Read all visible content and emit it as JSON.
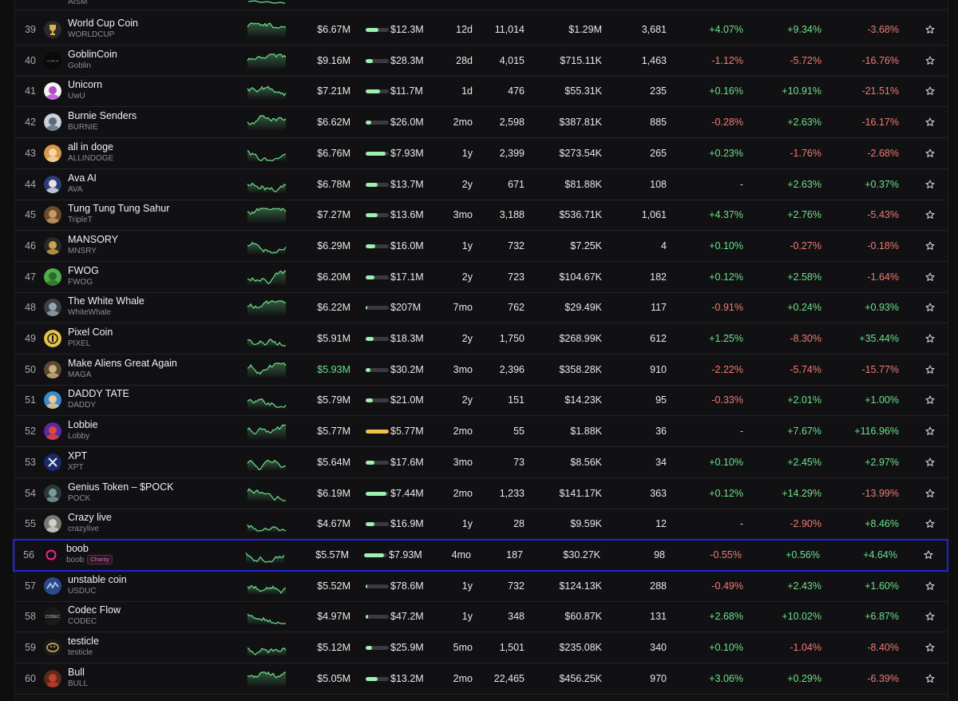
{
  "top_partial": {
    "ticker": "AISM"
  },
  "colors": {
    "positive": "#6de08a",
    "negative": "#f07a72",
    "selection": "#2323e0",
    "liquidity_bar": "#9ef0b0"
  },
  "rows": [
    {
      "rank": "39",
      "name": "World Cup Coin",
      "ticker": "WORLDCUP",
      "mcap": "$6.67M",
      "liq_pct": 0.55,
      "liq": "$12.3M",
      "age": "12d",
      "holders": "11,014",
      "volume": "$1.29M",
      "txns": "3,681",
      "ch1h": "+4.07%",
      "ch6h": "+9.34%",
      "ch24h": "-3.68%",
      "avatar_icon": "trophy-icon",
      "avatar_bg": "#2b2b2b",
      "avatar_fg": "#d9b24a"
    },
    {
      "rank": "40",
      "name": "GoblinCoin",
      "ticker": "Goblin",
      "mcap": "$9.16M",
      "liq_pct": 0.3,
      "liq": "$28.3M",
      "age": "28d",
      "holders": "4,015",
      "volume": "$715.11K",
      "txns": "1,463",
      "ch1h": "-1.12%",
      "ch6h": "-5.72%",
      "ch24h": "-16.76%",
      "avatar_icon": "goblin-logo-icon",
      "avatar_bg": "#0a0a0a",
      "avatar_fg": "#888"
    },
    {
      "rank": "41",
      "name": "Unicorn",
      "ticker": "UwU",
      "mcap": "$7.21M",
      "liq_pct": 0.62,
      "liq": "$11.7M",
      "age": "1d",
      "holders": "476",
      "volume": "$55.31K",
      "txns": "235",
      "ch1h": "+0.16%",
      "ch6h": "+10.91%",
      "ch24h": "-21.51%",
      "avatar_icon": "unicorn-icon",
      "avatar_bg": "#f3f3f3",
      "avatar_fg": "#b04ac8"
    },
    {
      "rank": "42",
      "name": "Burnie Senders",
      "ticker": "BURNIE",
      "mcap": "$6.62M",
      "liq_pct": 0.25,
      "liq": "$26.0M",
      "age": "2mo",
      "holders": "2,598",
      "volume": "$387.81K",
      "txns": "885",
      "ch1h": "-0.28%",
      "ch6h": "+2.63%",
      "ch24h": "-16.17%",
      "avatar_icon": "portrait-icon",
      "avatar_bg": "#c9d2dc",
      "avatar_fg": "#5a6a7a"
    },
    {
      "rank": "43",
      "name": "all in doge",
      "ticker": "ALLINDOGE",
      "mcap": "$6.76M",
      "liq_pct": 0.85,
      "liq": "$7.93M",
      "age": "1y",
      "holders": "2,399",
      "volume": "$273.54K",
      "txns": "265",
      "ch1h": "+0.23%",
      "ch6h": "-1.76%",
      "ch24h": "-2.68%",
      "avatar_icon": "doge-icon",
      "avatar_bg": "#d79a4a",
      "avatar_fg": "#f6d7a2"
    },
    {
      "rank": "44",
      "name": "Ava AI",
      "ticker": "AVA",
      "mcap": "$6.78M",
      "liq_pct": 0.5,
      "liq": "$13.7M",
      "age": "2y",
      "holders": "671",
      "volume": "$81.88K",
      "txns": "108",
      "ch1h": "-",
      "ch6h": "+2.63%",
      "ch24h": "+0.37%",
      "avatar_icon": "flag-icon",
      "avatar_bg": "#2c3d7a",
      "avatar_fg": "#e5e5e5"
    },
    {
      "rank": "45",
      "name": "Tung Tung Tung Sahur",
      "ticker": "TripleT",
      "mcap": "$7.27M",
      "liq_pct": 0.5,
      "liq": "$13.6M",
      "age": "3mo",
      "holders": "3,188",
      "volume": "$536.71K",
      "txns": "1,061",
      "ch1h": "+4.37%",
      "ch6h": "+2.76%",
      "ch24h": "-5.43%",
      "avatar_icon": "wood-figure-icon",
      "avatar_bg": "#6b4a2a",
      "avatar_fg": "#c89868"
    },
    {
      "rank": "46",
      "name": "MANSORY",
      "ticker": "MNSRY",
      "mcap": "$6.29M",
      "liq_pct": 0.42,
      "liq": "$16.0M",
      "age": "1y",
      "holders": "732",
      "volume": "$7.25K",
      "txns": "4",
      "ch1h": "+0.10%",
      "ch6h": "-0.27%",
      "ch24h": "-0.18%",
      "avatar_icon": "emblem-icon",
      "avatar_bg": "#2a2a2a",
      "avatar_fg": "#c9a44a"
    },
    {
      "rank": "47",
      "name": "FWOG",
      "ticker": "FWOG",
      "mcap": "$6.20M",
      "liq_pct": 0.38,
      "liq": "$17.1M",
      "age": "2y",
      "holders": "723",
      "volume": "$104.67K",
      "txns": "182",
      "ch1h": "+0.12%",
      "ch6h": "+2.58%",
      "ch24h": "-1.64%",
      "avatar_icon": "frog-icon",
      "avatar_bg": "#4fae4a",
      "avatar_fg": "#2a6a2a"
    },
    {
      "rank": "48",
      "name": "The White Whale",
      "ticker": "WhiteWhale",
      "mcap": "$6.22M",
      "liq_pct": 0.04,
      "liq": "$207M",
      "age": "7mo",
      "holders": "762",
      "volume": "$29.49K",
      "txns": "117",
      "ch1h": "-0.91%",
      "ch6h": "+0.24%",
      "ch24h": "+0.93%",
      "avatar_icon": "whale-icon",
      "avatar_bg": "#3a4048",
      "avatar_fg": "#9aa4b0"
    },
    {
      "rank": "49",
      "name": "Pixel Coin",
      "ticker": "PIXEL",
      "mcap": "$5.91M",
      "liq_pct": 0.36,
      "liq": "$18.3M",
      "age": "2y",
      "holders": "1,750",
      "volume": "$268.99K",
      "txns": "612",
      "ch1h": "+1.25%",
      "ch6h": "-8.30%",
      "ch24h": "+35.44%",
      "avatar_icon": "coin-icon",
      "avatar_bg": "#e7c24a",
      "avatar_fg": "#1a1a1a"
    },
    {
      "rank": "50",
      "name": "Make Aliens Great Again",
      "ticker": "MAGA",
      "mcap": "$5.93M",
      "mcap_green": true,
      "liq_pct": 0.22,
      "liq": "$30.2M",
      "age": "3mo",
      "holders": "2,396",
      "volume": "$358.28K",
      "txns": "910",
      "ch1h": "-2.22%",
      "ch6h": "-5.74%",
      "ch24h": "-15.77%",
      "avatar_icon": "alien-icon",
      "avatar_bg": "#5a4a32",
      "avatar_fg": "#c8b080"
    },
    {
      "rank": "51",
      "name": "DADDY TATE",
      "ticker": "DADDY",
      "mcap": "$5.79M",
      "liq_pct": 0.32,
      "liq": "$21.0M",
      "age": "2y",
      "holders": "151",
      "volume": "$14.23K",
      "txns": "95",
      "ch1h": "-0.33%",
      "ch6h": "+2.01%",
      "ch24h": "+1.00%",
      "avatar_icon": "portrait-icon",
      "avatar_bg": "#3a8ad0",
      "avatar_fg": "#f0c890"
    },
    {
      "rank": "52",
      "name": "Lobbie",
      "ticker": "Lobby",
      "mcap": "$5.77M",
      "liq_pct": 1.0,
      "liq_gold": true,
      "liq": "$5.77M",
      "age": "2mo",
      "holders": "55",
      "volume": "$1.88K",
      "txns": "36",
      "ch1h": "-",
      "ch6h": "+7.67%",
      "ch24h": "+116.96%",
      "avatar_icon": "lobster-icon",
      "avatar_bg": "#5a2aa0",
      "avatar_fg": "#e0483a"
    },
    {
      "rank": "53",
      "name": "XPT",
      "ticker": "XPT",
      "mcap": "$5.64M",
      "liq_pct": 0.38,
      "liq": "$17.6M",
      "age": "3mo",
      "holders": "73",
      "volume": "$8.56K",
      "txns": "34",
      "ch1h": "+0.10%",
      "ch6h": "+2.45%",
      "ch24h": "+2.97%",
      "avatar_icon": "x-logo-icon",
      "avatar_bg": "#1a2a6a",
      "avatar_fg": "#e8e8e8"
    },
    {
      "rank": "54",
      "name": "Genius Token – $POCK",
      "ticker": "POCK",
      "mcap": "$6.19M",
      "liq_pct": 0.88,
      "liq": "$7.44M",
      "age": "2mo",
      "holders": "1,233",
      "volume": "$141.17K",
      "txns": "363",
      "ch1h": "+0.12%",
      "ch6h": "+14.29%",
      "ch24h": "-13.99%",
      "avatar_icon": "globe-icon",
      "avatar_bg": "#2a3a3a",
      "avatar_fg": "#7a9a9a"
    },
    {
      "rank": "55",
      "name": "Crazy live",
      "ticker": "crazylive",
      "mcap": "$4.67M",
      "liq_pct": 0.38,
      "liq": "$16.9M",
      "age": "1y",
      "holders": "28",
      "volume": "$9.59K",
      "txns": "12",
      "ch1h": "-",
      "ch6h": "-2.90%",
      "ch24h": "+8.46%",
      "avatar_icon": "raccoon-icon",
      "avatar_bg": "#7a7a72",
      "avatar_fg": "#d0d0c8"
    },
    {
      "rank": "56",
      "name": "boob",
      "ticker": "boob",
      "badge": "Charity",
      "selected": true,
      "mcap": "$5.57M",
      "liq_pct": 0.85,
      "liq": "$7.93M",
      "age": "4mo",
      "holders": "187",
      "volume": "$30.27K",
      "txns": "98",
      "ch1h": "-0.55%",
      "ch6h": "+0.56%",
      "ch24h": "+4.64%",
      "avatar_icon": "ring-icon",
      "avatar_bg": "#1a0a14",
      "avatar_fg": "#e0308a"
    },
    {
      "rank": "57",
      "name": "unstable coin",
      "ticker": "USDUC",
      "mcap": "$5.52M",
      "liq_pct": 0.08,
      "liq": "$78.6M",
      "age": "1y",
      "holders": "732",
      "volume": "$124.13K",
      "txns": "288",
      "ch1h": "-0.49%",
      "ch6h": "+2.43%",
      "ch24h": "+1.60%",
      "avatar_icon": "wave-icon",
      "avatar_bg": "#2a4a8a",
      "avatar_fg": "#bcd0f0"
    },
    {
      "rank": "58",
      "name": "Codec Flow",
      "ticker": "CODEC",
      "mcap": "$4.97M",
      "liq_pct": 0.12,
      "liq": "$47.2M",
      "age": "1y",
      "holders": "348",
      "volume": "$60.87K",
      "txns": "131",
      "ch1h": "+2.68%",
      "ch6h": "+10.02%",
      "ch24h": "+6.87%",
      "avatar_icon": "codec-logo-icon",
      "avatar_bg": "#1a1a1a",
      "avatar_fg": "#d0d0d0"
    },
    {
      "rank": "59",
      "name": "testicle",
      "ticker": "testicle",
      "mcap": "$5.12M",
      "liq_pct": 0.26,
      "liq": "$25.9M",
      "age": "5mo",
      "holders": "1,501",
      "volume": "$235.08K",
      "txns": "340",
      "ch1h": "+0.10%",
      "ch6h": "-1.04%",
      "ch24h": "-8.40%",
      "avatar_icon": "doodle-icon",
      "avatar_bg": "#1a1a1a",
      "avatar_fg": "#e0c060"
    },
    {
      "rank": "60",
      "name": "Bull",
      "ticker": "BULL",
      "mcap": "$5.05M",
      "liq_pct": 0.5,
      "liq": "$13.2M",
      "age": "2mo",
      "holders": "22,465",
      "volume": "$456.25K",
      "txns": "970",
      "ch1h": "+3.06%",
      "ch6h": "+0.29%",
      "ch24h": "-6.39%",
      "avatar_icon": "bull-icon",
      "avatar_bg": "#5a2a1a",
      "avatar_fg": "#c04030"
    }
  ]
}
